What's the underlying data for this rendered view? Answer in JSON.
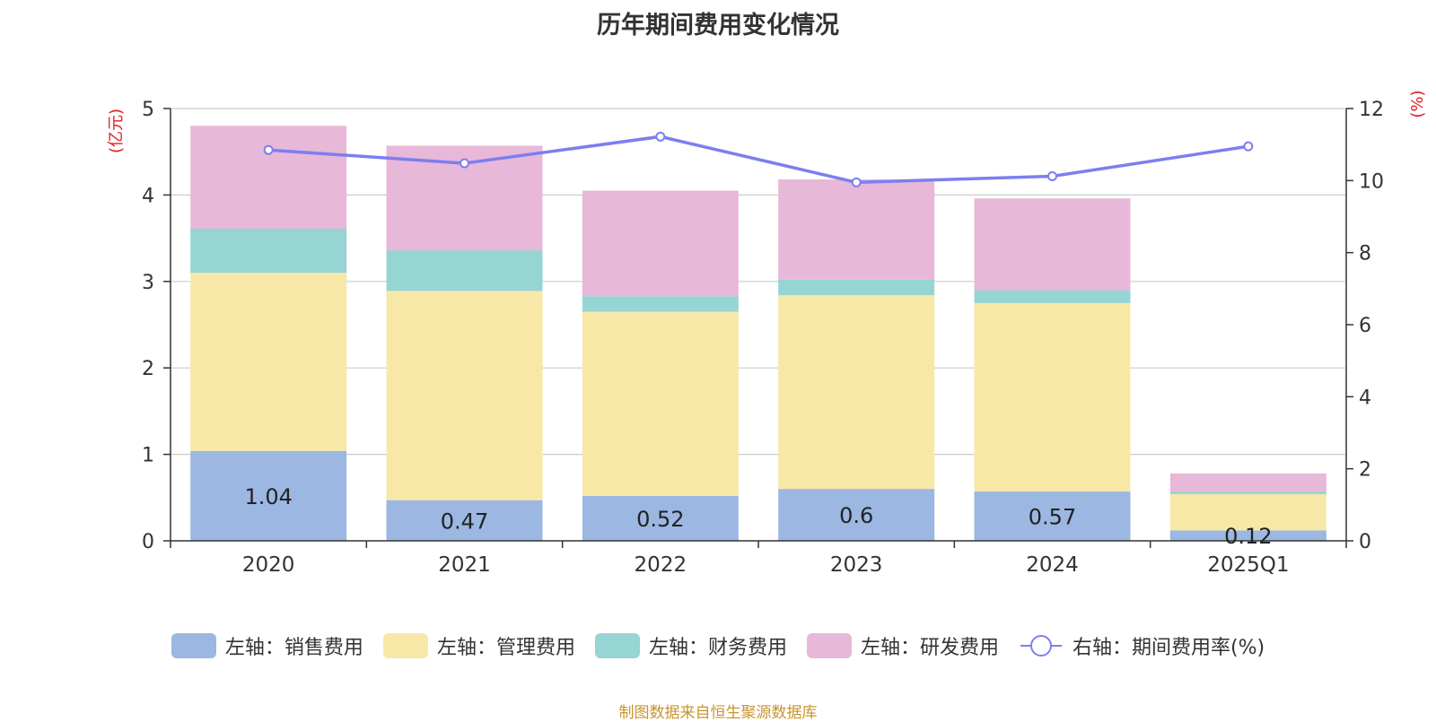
{
  "chart_data": {
    "type": "bar",
    "stacked": true,
    "title": "历年期间费用变化情况",
    "categories": [
      "2020",
      "2021",
      "2022",
      "2023",
      "2024",
      "2025Q1"
    ],
    "y_left": {
      "unit_label": "(亿元)",
      "ylim": [
        0,
        5
      ],
      "ticks": [
        0,
        1,
        2,
        3,
        4,
        5
      ]
    },
    "y_right": {
      "unit_label": "(%)",
      "ylim": [
        0,
        12
      ],
      "ticks": [
        0,
        2,
        4,
        6,
        8,
        10,
        12
      ]
    },
    "series": [
      {
        "name": "左轴：销售费用",
        "axis": "left",
        "color": "#9bb7e2",
        "values": [
          1.04,
          0.47,
          0.52,
          0.6,
          0.57,
          0.12
        ],
        "show_labels": true
      },
      {
        "name": "左轴：管理费用",
        "axis": "left",
        "color": "#f8e8a8",
        "values": [
          2.06,
          2.42,
          2.13,
          2.24,
          2.18,
          0.42
        ]
      },
      {
        "name": "左轴：财务费用",
        "axis": "left",
        "color": "#97d4d4",
        "values": [
          0.51,
          0.47,
          0.18,
          0.18,
          0.15,
          0.03
        ]
      },
      {
        "name": "左轴：研发费用",
        "axis": "left",
        "color": "#e8b8d8",
        "values": [
          1.19,
          1.21,
          1.22,
          1.16,
          1.06,
          0.21
        ]
      }
    ],
    "line_series": {
      "name": "右轴：期间费用率(%)",
      "axis": "right",
      "color": "#7b7ff0",
      "values": [
        10.85,
        10.48,
        11.22,
        9.95,
        10.12,
        10.95
      ]
    },
    "grid": true,
    "legend_position": "bottom"
  },
  "footer": {
    "source": "制图数据来自恒生聚源数据库"
  }
}
